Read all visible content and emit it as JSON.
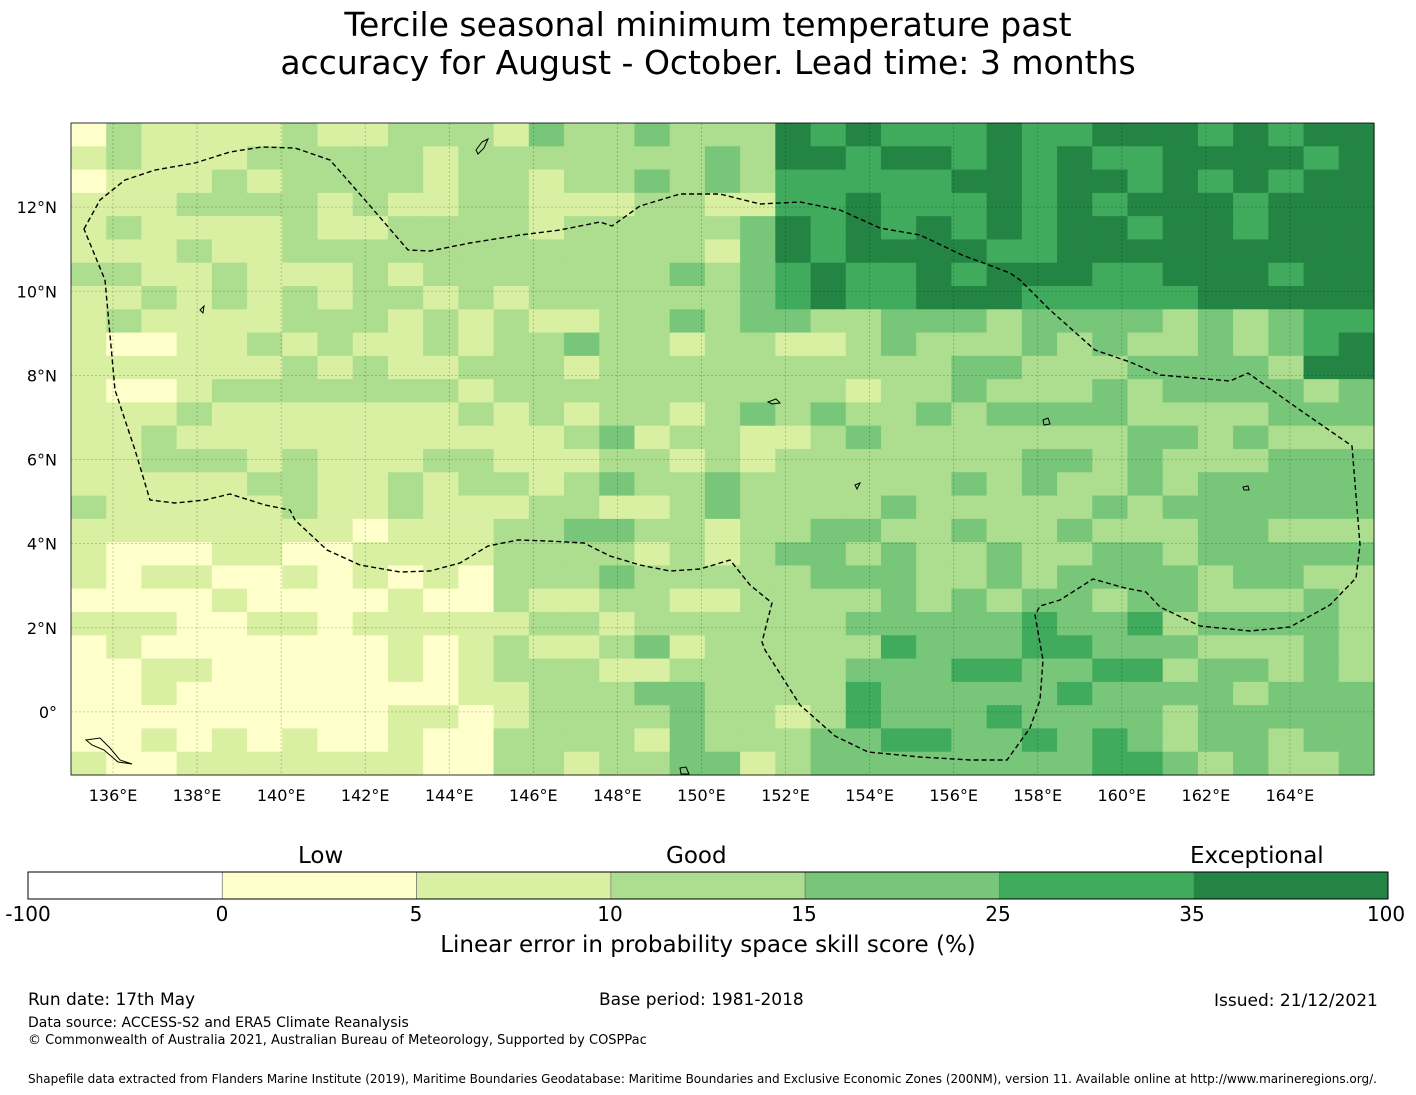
{
  "title": {
    "line1": "Tercile seasonal minimum temperature past",
    "line2": "accuracy for August - October. Lead time: 3 months"
  },
  "map": {
    "lon_labels": [
      "136°E",
      "138°E",
      "140°E",
      "142°E",
      "144°E",
      "146°E",
      "148°E",
      "150°E",
      "152°E",
      "154°E",
      "156°E",
      "158°E",
      "160°E",
      "162°E",
      "164°E"
    ],
    "lat_labels": [
      "12°N",
      "10°N",
      "8°N",
      "6°N",
      "4°N",
      "2°N",
      "0°"
    ],
    "extent": {
      "lon": [
        135,
        166
      ],
      "lat": [
        -1.5,
        14
      ]
    },
    "grid_cell_deg": 0.833,
    "boundary": "dashed EEZ outline",
    "land": "small islands outlined in black"
  },
  "colorbar": {
    "categories": [
      "Low",
      "Good",
      "Exceptional"
    ],
    "ticks": [
      "-100",
      "0",
      "5",
      "10",
      "15",
      "25",
      "35",
      "100"
    ],
    "colors": [
      "#ffffff",
      "#ffffcc",
      "#d9f0a3",
      "#addd8e",
      "#78c679",
      "#41ab5d",
      "#238443"
    ],
    "title": "Linear error in probability space skill score (%)"
  },
  "footer": {
    "run_date": "Run date: 17th May",
    "base_period": "Base period: 1981-2018",
    "issued": "Issued: 21/12/2021",
    "data_source": "Data source: ACCESS-S2 and ERA5 Climate Reanalysis",
    "copyright": "© Commonwealth of Australia 2021, Australian Bureau of Meteorology, Supported by COSPPac",
    "shapefile": "Shapefile data extracted from Flanders Marine Institute (2019), Maritime Boundaries Geodatabase: Maritime Boundaries and Exclusive Economic Zones (200NM), version 11. Available online at http://www.marineregions.org/."
  }
}
